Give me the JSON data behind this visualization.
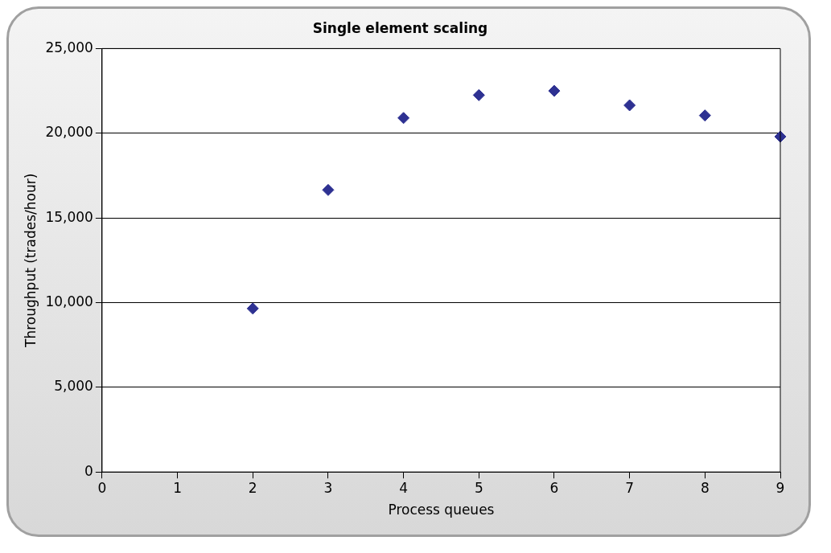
{
  "chart_data": {
    "type": "scatter",
    "title": "Single element scaling",
    "xlabel": "Process queues",
    "ylabel": "Throughput (trades/hour)",
    "x": [
      2,
      3,
      4,
      5,
      6,
      7,
      8,
      9
    ],
    "series": [
      {
        "color": "#2e3192",
        "values": [
          9650,
          16650,
          20900,
          22250,
          22500,
          21650,
          21050,
          19800
        ]
      }
    ],
    "xlim": [
      0,
      9
    ],
    "xticks": [
      0,
      1,
      2,
      3,
      4,
      5,
      6,
      7,
      8,
      9
    ],
    "ylim": [
      0,
      25000
    ],
    "yticks": [
      {
        "value": 0,
        "label": "0"
      },
      {
        "value": 5000,
        "label": "5,000"
      },
      {
        "value": 10000,
        "label": "10,000"
      },
      {
        "value": 15000,
        "label": "15,000"
      },
      {
        "value": 20000,
        "label": "20,000"
      },
      {
        "value": 25000,
        "label": "25,000"
      }
    ],
    "grid": "y",
    "legend": false,
    "marker": "diamond"
  }
}
